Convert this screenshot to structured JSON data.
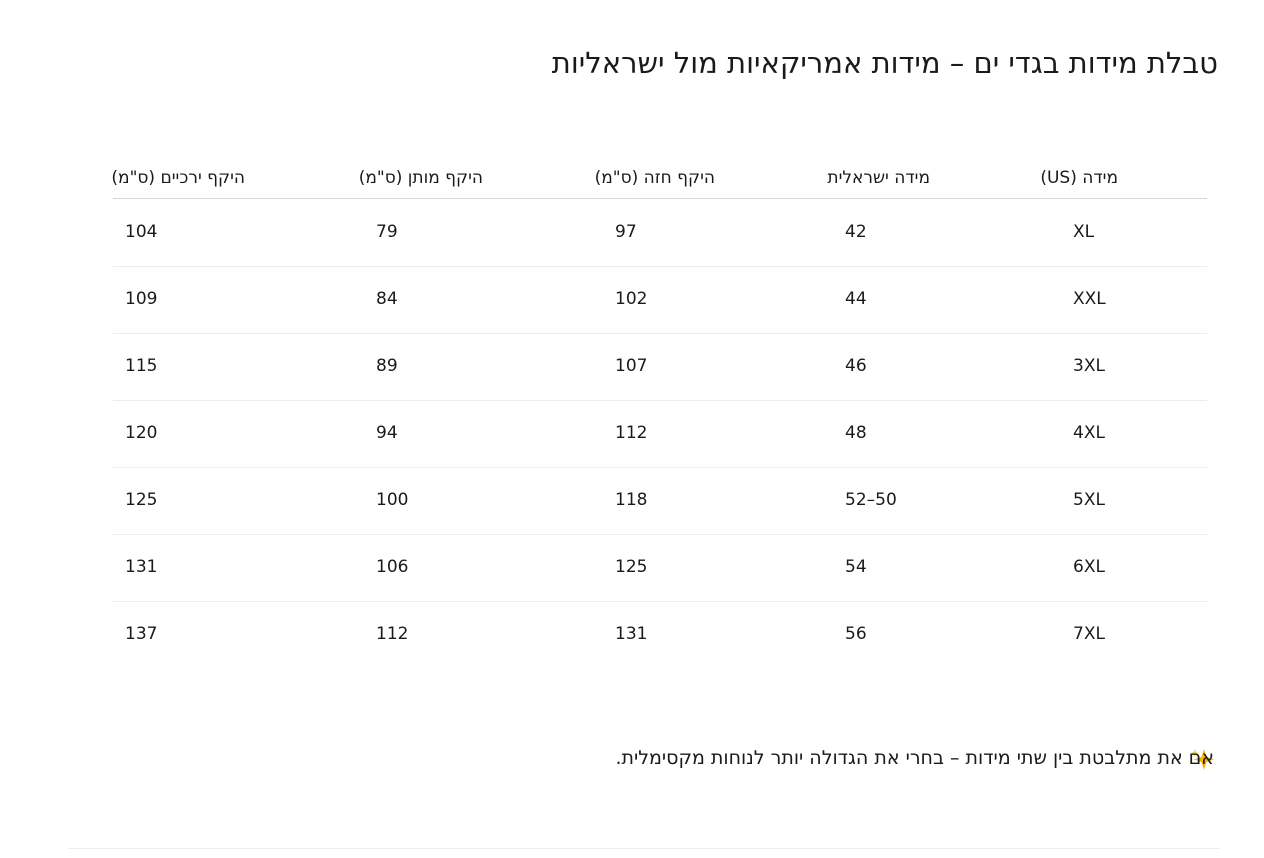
{
  "title": "טבלת מידות בגדי ים – מידות אמריקאיות מול ישראליות",
  "table": {
    "headers": [
      "מידה (US)",
      "מידה ישראלית",
      "היקף חזה (ס\"מ)",
      "היקף מותן (ס\"מ)",
      "היקף ירכיים (ס\"מ)"
    ],
    "rows": [
      [
        "XL",
        "42",
        "97",
        "79",
        "104"
      ],
      [
        "XXL",
        "44",
        "102",
        "84",
        "109"
      ],
      [
        "3XL",
        "46",
        "107",
        "89",
        "115"
      ],
      [
        "4XL",
        "48",
        "112",
        "94",
        "120"
      ],
      [
        "5XL",
        "50–52",
        "118",
        "100",
        "125"
      ],
      [
        "6XL",
        "54",
        "125",
        "106",
        "131"
      ],
      [
        "7XL",
        "56",
        "131",
        "112",
        "137"
      ]
    ]
  },
  "note": "אם את מתלבטת בין שתי מידות – בחרי את הגדולה יותר לנוחות מקסימלית."
}
